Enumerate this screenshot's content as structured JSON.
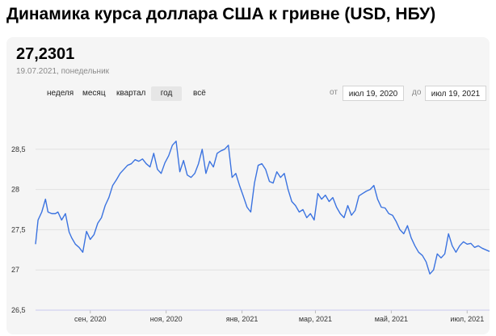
{
  "page": {
    "title": "Динамика курса доллара США к гривне (USD, НБУ)"
  },
  "rate": {
    "value": "27,2301",
    "date": "19.07.2021, понедельник"
  },
  "periods": [
    {
      "label": "неделя",
      "active": false
    },
    {
      "label": "месяц",
      "active": false
    },
    {
      "label": "квартал",
      "active": false
    },
    {
      "label": "год",
      "active": true
    },
    {
      "label": "всё",
      "active": false
    }
  ],
  "range": {
    "from_label": "от",
    "from_value": "июл 19, 2020",
    "to_label": "до",
    "to_value": "июл 19, 2021"
  },
  "colors": {
    "line": "#3b73e0",
    "grid": "#e1e1e1",
    "axis": "#c9c9f0"
  },
  "chart_data": {
    "type": "line",
    "title": "",
    "xlabel": "",
    "ylabel": "",
    "ylim": [
      26.5,
      29.0
    ],
    "y_ticks": [
      "26,5",
      "27",
      "27,5",
      "28",
      "28,5"
    ],
    "y_tick_values": [
      26.5,
      27.0,
      27.5,
      28.0,
      28.5
    ],
    "x_ticks": [
      "сен, 2020",
      "ноя, 2020",
      "янв, 2021",
      "мар, 2021",
      "май, 2021",
      "июл, 2021"
    ],
    "x_tick_dates": [
      "2020-09-01",
      "2020-11-01",
      "2021-01-01",
      "2021-03-01",
      "2021-05-01",
      "2021-07-01"
    ],
    "x_range": [
      "2020-07-19",
      "2021-07-19"
    ],
    "grid": true,
    "series": [
      {
        "x": [
          "2020-07-19",
          "2020-07-21",
          "2020-07-24",
          "2020-07-27",
          "2020-07-29",
          "2020-08-01",
          "2020-08-04",
          "2020-08-06",
          "2020-08-09",
          "2020-08-12",
          "2020-08-15",
          "2020-08-17",
          "2020-08-20",
          "2020-08-23",
          "2020-08-26",
          "2020-08-29",
          "2020-09-01",
          "2020-09-04",
          "2020-09-07",
          "2020-09-10",
          "2020-09-13",
          "2020-09-16",
          "2020-09-19",
          "2020-09-22",
          "2020-09-25",
          "2020-09-28",
          "2020-10-01",
          "2020-10-04",
          "2020-10-07",
          "2020-10-10",
          "2020-10-13",
          "2020-10-16",
          "2020-10-19",
          "2020-10-22",
          "2020-10-25",
          "2020-10-28",
          "2020-10-31",
          "2020-11-03",
          "2020-11-06",
          "2020-11-09",
          "2020-11-12",
          "2020-11-15",
          "2020-11-18",
          "2020-11-21",
          "2020-11-24",
          "2020-11-27",
          "2020-11-30",
          "2020-12-03",
          "2020-12-06",
          "2020-12-09",
          "2020-12-12",
          "2020-12-15",
          "2020-12-18",
          "2020-12-21",
          "2020-12-24",
          "2020-12-27",
          "2020-12-30",
          "2021-01-02",
          "2021-01-05",
          "2021-01-08",
          "2021-01-11",
          "2021-01-14",
          "2021-01-17",
          "2021-01-20",
          "2021-01-23",
          "2021-01-26",
          "2021-01-29",
          "2021-02-01",
          "2021-02-04",
          "2021-02-07",
          "2021-02-10",
          "2021-02-13",
          "2021-02-16",
          "2021-02-19",
          "2021-02-22",
          "2021-02-25",
          "2021-02-28",
          "2021-03-03",
          "2021-03-06",
          "2021-03-09",
          "2021-03-12",
          "2021-03-15",
          "2021-03-18",
          "2021-03-21",
          "2021-03-24",
          "2021-03-27",
          "2021-03-30",
          "2021-04-02",
          "2021-04-05",
          "2021-04-08",
          "2021-04-11",
          "2021-04-14",
          "2021-04-17",
          "2021-04-20",
          "2021-04-23",
          "2021-04-26",
          "2021-04-29",
          "2021-05-02",
          "2021-05-05",
          "2021-05-08",
          "2021-05-11",
          "2021-05-14",
          "2021-05-17",
          "2021-05-20",
          "2021-05-23",
          "2021-05-26",
          "2021-05-29",
          "2021-06-01",
          "2021-06-04",
          "2021-06-07",
          "2021-06-10",
          "2021-06-13",
          "2021-06-16",
          "2021-06-19",
          "2021-06-22",
          "2021-06-25",
          "2021-06-28",
          "2021-07-01",
          "2021-07-04",
          "2021-07-07",
          "2021-07-10",
          "2021-07-13",
          "2021-07-16",
          "2021-07-19"
        ],
        "values": [
          27.32,
          27.62,
          27.72,
          27.88,
          27.72,
          27.7,
          27.7,
          27.72,
          27.62,
          27.7,
          27.47,
          27.4,
          27.32,
          27.28,
          27.22,
          27.48,
          27.38,
          27.44,
          27.58,
          27.65,
          27.8,
          27.9,
          28.05,
          28.12,
          28.2,
          28.25,
          28.3,
          28.32,
          28.37,
          28.35,
          28.38,
          28.32,
          28.28,
          28.45,
          28.25,
          28.2,
          28.33,
          28.42,
          28.55,
          28.6,
          28.22,
          28.36,
          28.18,
          28.15,
          28.2,
          28.32,
          28.5,
          28.2,
          28.35,
          28.28,
          28.45,
          28.48,
          28.5,
          28.55,
          28.15,
          28.2,
          28.05,
          27.92,
          27.78,
          27.72,
          28.08,
          28.3,
          28.32,
          28.25,
          28.1,
          28.08,
          28.22,
          28.15,
          28.2,
          28.0,
          27.85,
          27.8,
          27.72,
          27.75,
          27.65,
          27.7,
          27.62,
          27.95,
          27.88,
          27.93,
          27.85,
          27.9,
          27.78,
          27.7,
          27.65,
          27.8,
          27.68,
          27.74,
          27.92,
          27.95,
          27.98,
          28.0,
          28.05,
          27.88,
          27.78,
          27.77,
          27.7,
          27.68,
          27.6,
          27.5,
          27.45,
          27.55,
          27.4,
          27.3,
          27.22,
          27.18,
          27.1,
          26.95,
          27.0,
          27.2,
          27.15,
          27.2,
          27.45,
          27.3,
          27.22,
          27.3,
          27.35,
          27.32,
          27.33,
          27.28,
          27.3,
          27.27,
          27.25,
          27.23
        ]
      }
    ]
  }
}
